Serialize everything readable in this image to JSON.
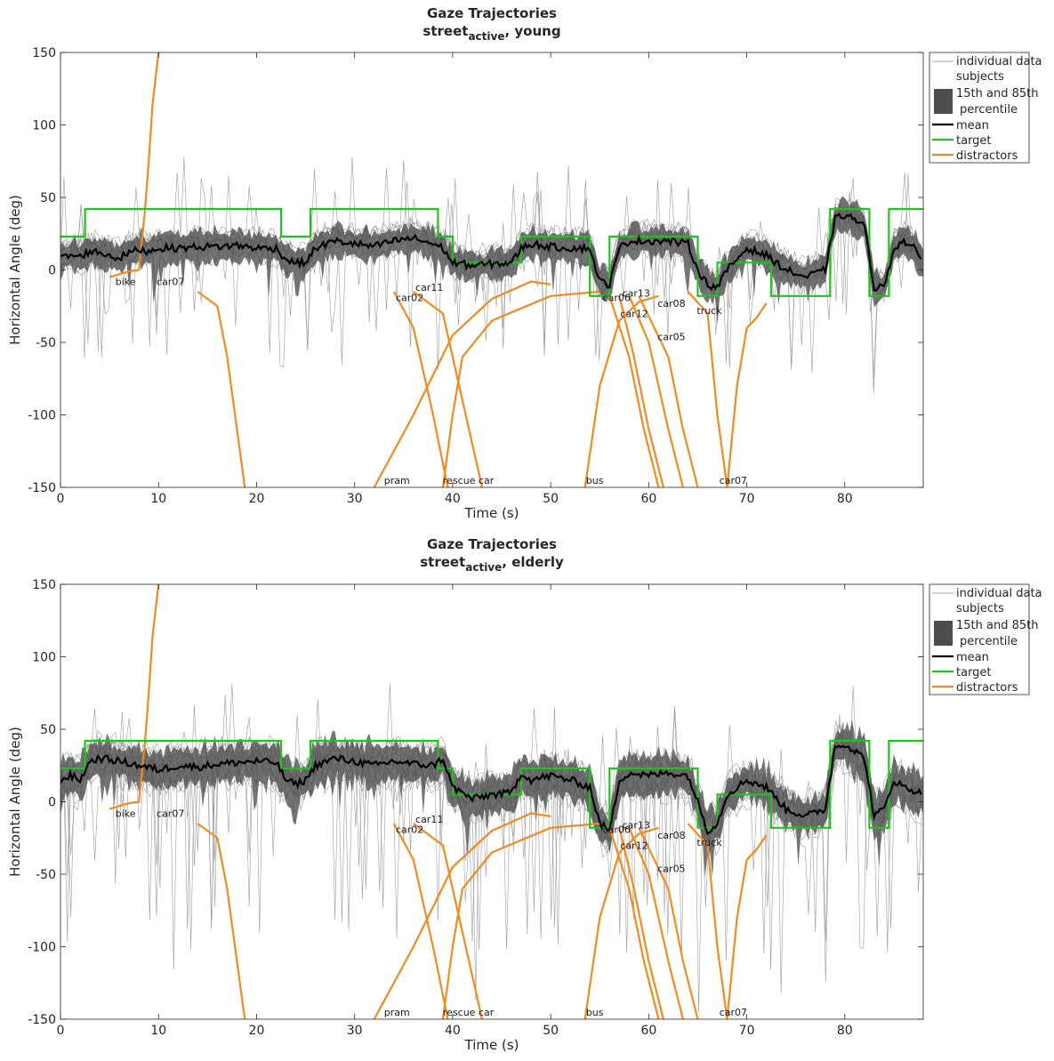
{
  "chart_data": [
    {
      "type": "line",
      "title": "Gaze Trajectories",
      "subtitle_parts": [
        "street",
        "active",
        ", young"
      ],
      "xlabel": "Time (s)",
      "ylabel": "Horizontal Angle (deg)",
      "xlim": [
        0,
        88
      ],
      "ylim": [
        -150,
        150
      ],
      "xticks": [
        0,
        10,
        20,
        30,
        40,
        50,
        60,
        70,
        80
      ],
      "yticks": [
        150,
        100,
        50,
        0,
        -50,
        -100,
        -150
      ],
      "grid": false,
      "legend": {
        "placement": "outside-top-right",
        "entries": [
          "individual data subjects",
          "15th and 85th percentile",
          "mean",
          "target",
          "distractors"
        ]
      },
      "colors": {
        "individual": "#8c8c8c",
        "band": "#4d4d4d",
        "mean": "#000000",
        "target": "#1fc21f",
        "distractors": "#f28a1f"
      },
      "target": {
        "x": [
          0,
          2.5,
          2.5,
          22.5,
          22.5,
          25.5,
          25.5,
          38.5,
          38.5,
          40,
          40,
          47,
          47,
          54,
          54,
          56,
          56,
          65,
          65,
          67,
          67,
          72.5,
          72.5,
          78.5,
          78.5,
          82.5,
          82.5,
          84.5,
          84.5,
          88
        ],
        "y": [
          23,
          23,
          42,
          42,
          23,
          23,
          42,
          42,
          23,
          23,
          5,
          5,
          23,
          23,
          -18,
          -18,
          23,
          23,
          -18,
          -18,
          5,
          5,
          -18,
          -18,
          42,
          42,
          -18,
          -18,
          42,
          42
        ]
      },
      "mean": {
        "x": [
          0,
          1,
          2,
          3,
          4,
          5,
          6,
          7,
          8,
          9,
          10,
          12,
          14,
          16,
          18,
          20,
          22,
          23,
          24,
          25,
          26,
          28,
          30,
          32,
          34,
          36,
          38,
          39,
          40,
          42,
          44,
          46,
          47,
          48,
          50,
          52,
          54,
          55,
          56,
          57,
          58,
          60,
          62,
          64,
          65,
          66,
          67,
          68,
          70,
          72,
          74,
          76,
          78,
          79,
          80,
          81,
          82,
          83,
          84,
          85,
          86,
          87,
          88
        ],
        "y": [
          8,
          10,
          9,
          13,
          12,
          10,
          8,
          12,
          14,
          13,
          15,
          15,
          16,
          16,
          17,
          15,
          15,
          7,
          5,
          5,
          15,
          20,
          18,
          16,
          20,
          22,
          18,
          15,
          5,
          3,
          4,
          5,
          15,
          18,
          16,
          15,
          15,
          -8,
          -10,
          15,
          20,
          20,
          20,
          18,
          0,
          -10,
          -12,
          0,
          15,
          10,
          0,
          -5,
          0,
          35,
          38,
          35,
          30,
          -12,
          -12,
          15,
          20,
          15,
          5
        ]
      },
      "band_halfwidth": 10,
      "distractors": [
        {
          "label": "bike",
          "x": [
            5,
            7,
            8,
            8.6,
            9,
            9.4,
            10
          ],
          "y": [
            -5,
            -1,
            0,
            40,
            75,
            115,
            150
          ]
        },
        {
          "label": "car07",
          "x": [
            14,
            16,
            17,
            18,
            18.8
          ],
          "y": [
            -15,
            -25,
            -60,
            -110,
            -150
          ]
        },
        {
          "label": "car02",
          "x": [
            34,
            36,
            38,
            39.5
          ],
          "y": [
            -15,
            -40,
            -100,
            -150
          ]
        },
        {
          "label": "car11",
          "x": [
            36,
            39,
            41,
            43
          ],
          "y": [
            -15,
            -30,
            -90,
            -150
          ]
        },
        {
          "label": "pram",
          "x": [
            32,
            36,
            40,
            44,
            48,
            50
          ],
          "y": [
            -150,
            -100,
            -45,
            -20,
            -8,
            -10
          ]
        },
        {
          "label": "rescue car",
          "x": [
            39,
            40,
            41,
            44,
            50,
            55
          ],
          "y": [
            -150,
            -100,
            -60,
            -35,
            -18,
            -15
          ]
        },
        {
          "label": "car06",
          "x": [
            53.5,
            55,
            57,
            59,
            61
          ],
          "y": [
            -150,
            -80,
            -35,
            -22,
            -18
          ]
        },
        {
          "label": "car13",
          "x": [
            56,
            58,
            59.5,
            61
          ],
          "y": [
            -18,
            -60,
            -110,
            -150
          ]
        },
        {
          "label": "car12",
          "x": [
            57,
            58.5,
            60,
            61.5
          ],
          "y": [
            -18,
            -60,
            -110,
            -150
          ]
        },
        {
          "label": "car08",
          "x": [
            58,
            60,
            62,
            63.5
          ],
          "y": [
            -18,
            -50,
            -110,
            -150
          ]
        },
        {
          "label": "car05",
          "x": [
            59,
            62,
            63.5,
            65
          ],
          "y": [
            -18,
            -60,
            -110,
            -150
          ]
        },
        {
          "label": "truck",
          "x": [
            64,
            66,
            67,
            68
          ],
          "y": [
            -15,
            -30,
            -100,
            -150
          ]
        },
        {
          "label": "car07",
          "x": [
            68,
            69,
            70,
            71,
            72
          ],
          "y": [
            -150,
            -80,
            -40,
            -33,
            -23
          ]
        }
      ],
      "annotations": [
        {
          "text": "bike",
          "x": 5.6,
          "y": -8
        },
        {
          "text": "car07",
          "x": 9.8,
          "y": -8
        },
        {
          "text": "car02",
          "x": 34.2,
          "y": -19
        },
        {
          "text": "car11",
          "x": 36.2,
          "y": -12
        },
        {
          "text": "car06",
          "x": 55.3,
          "y": -19
        },
        {
          "text": "car13",
          "x": 57.3,
          "y": -16
        },
        {
          "text": "car12",
          "x": 57.1,
          "y": -30
        },
        {
          "text": "car08",
          "x": 60.9,
          "y": -23
        },
        {
          "text": "car05",
          "x": 60.9,
          "y": -46
        },
        {
          "text": "truck",
          "x": 64.9,
          "y": -28
        },
        {
          "text": "pram",
          "x": 33,
          "y": -145
        },
        {
          "text": "rescue car",
          "x": 39,
          "y": -145
        },
        {
          "text": "bus",
          "x": 53.6,
          "y": -145
        },
        {
          "text": "car07",
          "x": 67.2,
          "y": -145
        }
      ]
    },
    {
      "type": "line",
      "title": "Gaze Trajectories",
      "subtitle_parts": [
        "street",
        "active",
        ", elderly"
      ],
      "xlabel": "Time (s)",
      "ylabel": "Horizontal Angle (deg)",
      "xlim": [
        0,
        88
      ],
      "ylim": [
        -150,
        150
      ],
      "xticks": [
        0,
        10,
        20,
        30,
        40,
        50,
        60,
        70,
        80
      ],
      "yticks": [
        150,
        100,
        50,
        0,
        -50,
        -100,
        -150
      ],
      "grid": false,
      "legend": {
        "placement": "outside-top-right",
        "entries": [
          "individual data subjects",
          "15th and 85th percentile",
          "mean",
          "target",
          "distractors"
        ]
      },
      "colors": {
        "individual": "#8c8c8c",
        "band": "#4d4d4d",
        "mean": "#000000",
        "target": "#1fc21f",
        "distractors": "#f28a1f"
      },
      "target": {
        "x": [
          0,
          2.5,
          2.5,
          22.5,
          22.5,
          25.5,
          25.5,
          38.5,
          38.5,
          40,
          40,
          47,
          47,
          54,
          54,
          56,
          56,
          65,
          65,
          67,
          67,
          72.5,
          72.5,
          78.5,
          78.5,
          82.5,
          82.5,
          84.5,
          84.5,
          88
        ],
        "y": [
          23,
          23,
          42,
          42,
          23,
          23,
          42,
          42,
          23,
          23,
          5,
          5,
          23,
          23,
          -18,
          -18,
          23,
          23,
          -18,
          -18,
          5,
          5,
          -18,
          -18,
          42,
          42,
          -18,
          -18,
          42,
          42
        ]
      },
      "mean": {
        "x": [
          0,
          1,
          2,
          3,
          4,
          6,
          8,
          10,
          12,
          14,
          16,
          18,
          20,
          22,
          23,
          24,
          25,
          26,
          28,
          30,
          32,
          34,
          36,
          38,
          39,
          40,
          42,
          44,
          46,
          47,
          48,
          50,
          52,
          54,
          55,
          56,
          57,
          58,
          60,
          62,
          64,
          65,
          66,
          67,
          68,
          70,
          72,
          74,
          76,
          78,
          79,
          80,
          81,
          82,
          83,
          84,
          85,
          86,
          87,
          88
        ],
        "y": [
          15,
          18,
          15,
          28,
          30,
          28,
          25,
          22,
          25,
          24,
          26,
          27,
          28,
          27,
          15,
          12,
          15,
          25,
          30,
          28,
          25,
          28,
          26,
          25,
          30,
          10,
          2,
          5,
          6,
          20,
          15,
          18,
          15,
          10,
          -15,
          -20,
          15,
          20,
          18,
          20,
          18,
          0,
          -20,
          -15,
          5,
          15,
          10,
          -5,
          -10,
          -5,
          38,
          40,
          35,
          30,
          -10,
          -5,
          15,
          10,
          8,
          5
        ]
      },
      "band_halfwidth": 13,
      "distractors": [
        {
          "label": "bike",
          "x": [
            5,
            7,
            8,
            8.6,
            9,
            9.4,
            10
          ],
          "y": [
            -5,
            -1,
            0,
            40,
            75,
            115,
            150
          ]
        },
        {
          "label": "car07",
          "x": [
            14,
            16,
            17,
            18,
            18.8
          ],
          "y": [
            -15,
            -25,
            -60,
            -110,
            -150
          ]
        },
        {
          "label": "car02",
          "x": [
            34,
            36,
            38,
            39.5
          ],
          "y": [
            -15,
            -40,
            -100,
            -150
          ]
        },
        {
          "label": "car11",
          "x": [
            36,
            39,
            41,
            43
          ],
          "y": [
            -15,
            -30,
            -90,
            -150
          ]
        },
        {
          "label": "pram",
          "x": [
            32,
            36,
            40,
            44,
            48,
            50
          ],
          "y": [
            -150,
            -100,
            -45,
            -20,
            -8,
            -10
          ]
        },
        {
          "label": "rescue car",
          "x": [
            39,
            40,
            41,
            44,
            50,
            55
          ],
          "y": [
            -150,
            -100,
            -60,
            -35,
            -18,
            -15
          ]
        },
        {
          "label": "car06",
          "x": [
            53.5,
            55,
            57,
            59,
            61
          ],
          "y": [
            -150,
            -80,
            -35,
            -22,
            -18
          ]
        },
        {
          "label": "car13",
          "x": [
            56,
            58,
            59.5,
            61
          ],
          "y": [
            -18,
            -60,
            -110,
            -150
          ]
        },
        {
          "label": "car12",
          "x": [
            57,
            58.5,
            60,
            61.5
          ],
          "y": [
            -18,
            -60,
            -110,
            -150
          ]
        },
        {
          "label": "car08",
          "x": [
            58,
            60,
            62,
            63.5
          ],
          "y": [
            -18,
            -50,
            -110,
            -150
          ]
        },
        {
          "label": "car05",
          "x": [
            59,
            62,
            63.5,
            65
          ],
          "y": [
            -18,
            -60,
            -110,
            -150
          ]
        },
        {
          "label": "truck",
          "x": [
            64,
            66,
            67,
            68
          ],
          "y": [
            -15,
            -30,
            -100,
            -150
          ]
        },
        {
          "label": "car07",
          "x": [
            68,
            69,
            70,
            71,
            72
          ],
          "y": [
            -150,
            -80,
            -40,
            -33,
            -23
          ]
        }
      ],
      "annotations": [
        {
          "text": "bike",
          "x": 5.6,
          "y": -8
        },
        {
          "text": "car07",
          "x": 9.8,
          "y": -8
        },
        {
          "text": "car02",
          "x": 34.2,
          "y": -19
        },
        {
          "text": "car11",
          "x": 36.2,
          "y": -12
        },
        {
          "text": "car06",
          "x": 55.3,
          "y": -19
        },
        {
          "text": "car13",
          "x": 57.3,
          "y": -16
        },
        {
          "text": "car12",
          "x": 57.1,
          "y": -30
        },
        {
          "text": "car08",
          "x": 60.9,
          "y": -23
        },
        {
          "text": "car05",
          "x": 60.9,
          "y": -46
        },
        {
          "text": "truck",
          "x": 64.9,
          "y": -28
        },
        {
          "text": "pram",
          "x": 33,
          "y": -145
        },
        {
          "text": "rescue car",
          "x": 39,
          "y": -145
        },
        {
          "text": "bus",
          "x": 53.6,
          "y": -145
        },
        {
          "text": "car07",
          "x": 67.2,
          "y": -145
        }
      ]
    }
  ]
}
